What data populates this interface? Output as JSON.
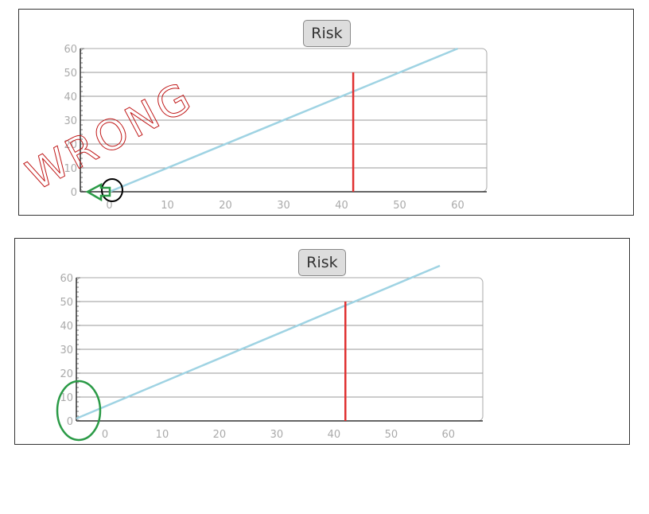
{
  "chart_data": [
    {
      "type": "line",
      "title": "Risk",
      "xlim": [
        -5,
        65
      ],
      "ylim": [
        0,
        60
      ],
      "xticks": [
        0,
        10,
        20,
        30,
        40,
        50,
        60
      ],
      "yticks": [
        0,
        10,
        20,
        30,
        40,
        50,
        60
      ],
      "grid": "horizontal",
      "series": [
        {
          "points": [
            [
              0,
              0
            ],
            [
              60,
              60
            ]
          ],
          "color": "#9fd3e3"
        },
        {
          "points": [
            [
              42,
              0
            ],
            [
              42,
              50
            ]
          ],
          "color": "#e03030"
        }
      ],
      "annotations": {
        "text": "WRONG",
        "text_color": "#c01818",
        "arrow_color": "#2a9a46",
        "circle_color": "#000000"
      }
    },
    {
      "type": "line",
      "title": "Risk",
      "xlim": [
        -5,
        66
      ],
      "ylim": [
        0,
        60
      ],
      "xticks": [
        0,
        10,
        20,
        30,
        40,
        50,
        60
      ],
      "yticks": [
        0,
        10,
        20,
        30,
        40,
        50,
        60
      ],
      "grid": "horizontal",
      "series": [
        {
          "points": [
            [
              -5,
              1
            ],
            [
              58.5,
              65
            ]
          ],
          "color": "#9fd3e3"
        },
        {
          "points": [
            [
              42,
              0
            ],
            [
              42,
              50
            ]
          ],
          "color": "#e03030"
        }
      ],
      "annotations": {
        "ellipse_color": "#2a9a46"
      }
    }
  ]
}
